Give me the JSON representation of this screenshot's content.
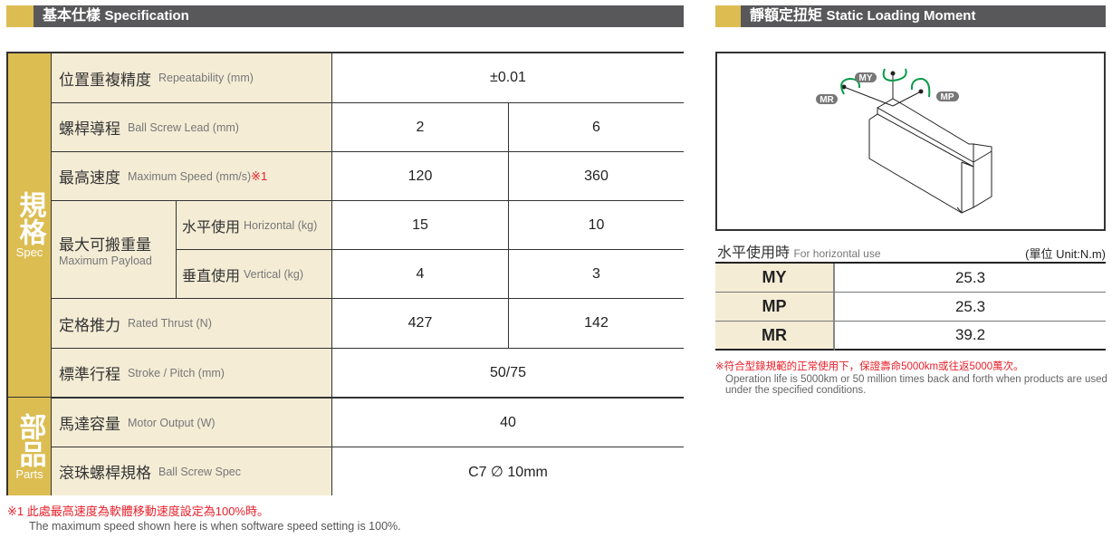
{
  "spec": {
    "title_zh": "基本仕樣",
    "title_en": "Specification",
    "groups": [
      {
        "zh": "規格",
        "en": "Spec"
      },
      {
        "zh": "部品",
        "en": "Parts"
      }
    ],
    "rows": [
      {
        "zh": "位置重複精度",
        "en": "Repeatability (mm)",
        "values": [
          "±0.01"
        ]
      },
      {
        "zh": "螺桿導程",
        "en": "Ball Screw Lead (mm)",
        "values": [
          "2",
          "6"
        ]
      },
      {
        "zh": "最高速度",
        "en": "Maximum Speed (mm/s)",
        "note": "※1",
        "values": [
          "120",
          "360"
        ]
      },
      {
        "zh": "水平使用",
        "en": "Horizontal (kg)",
        "values": [
          "15",
          "10"
        ]
      },
      {
        "zh": "垂直使用",
        "en": "Vertical (kg)",
        "values": [
          "4",
          "3"
        ]
      },
      {
        "zh": "定格推力",
        "en": "Rated Thrust (N)",
        "values": [
          "427",
          "142"
        ]
      },
      {
        "zh": "標準行程",
        "en": "Stroke / Pitch (mm)",
        "values": [
          "50/75"
        ]
      },
      {
        "zh": "馬達容量",
        "en": "Motor Output (W)",
        "values": [
          "40"
        ]
      },
      {
        "zh": "滾珠螺桿規格",
        "en": "Ball Screw Spec",
        "values": [
          "C7 ∅ 10mm"
        ]
      }
    ],
    "payload": {
      "zh": "最大可搬重量",
      "en": "Maximum Payload"
    },
    "footnote_zh": "※1 此處最高速度為軟體移動速度設定為100%時。",
    "footnote_en": "The maximum speed shown here is when software speed setting is 100%."
  },
  "moment": {
    "title_zh": "靜額定扭矩",
    "title_en": "Static Loading Moment",
    "diagram_labels": [
      "MY",
      "MR",
      "MP"
    ],
    "sub_zh": "水平使用時",
    "sub_en": "For horizontal use",
    "unit": "(單位 Unit:N.m)",
    "rows": [
      {
        "k": "MY",
        "v": "25.3"
      },
      {
        "k": "MP",
        "v": "25.3"
      },
      {
        "k": "MR",
        "v": "39.2"
      }
    ],
    "note_zh": "※符合型錄規範的正常使用下，保證壽命5000km或往返5000萬次。",
    "note_en": "Operation life is 5000km or 50 million times back and forth when products are used under the specified conditions."
  },
  "colors": {
    "gold": "#dcbd52",
    "cream": "#f4ecd5",
    "header": "#58585a",
    "note": "#e8202a",
    "arrow": "#0a9a4a"
  }
}
